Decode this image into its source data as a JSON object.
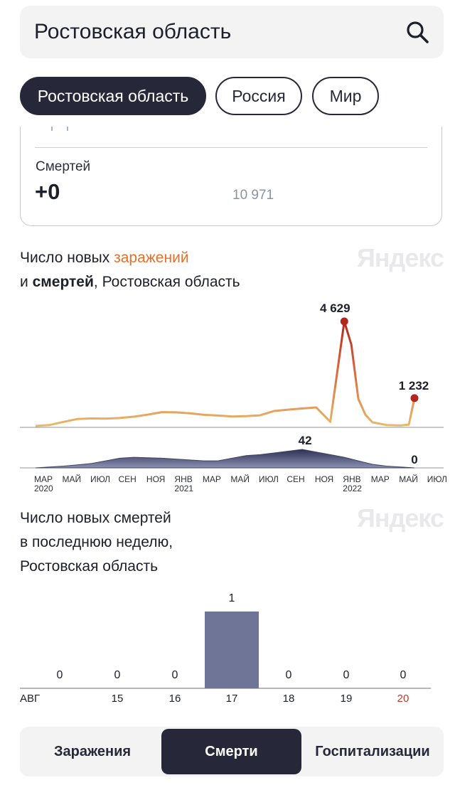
{
  "search": {
    "value": "Ростовская область"
  },
  "regions": [
    {
      "label": "Ростовская область",
      "active": true
    },
    {
      "label": "Россия",
      "active": false
    },
    {
      "label": "Мир",
      "active": false
    }
  ],
  "stats": {
    "deaths_label": "Смертей",
    "deaths_new": "+0",
    "deaths_total": "10 971"
  },
  "main_chart_title": {
    "line1_prefix": "Число новых ",
    "line1_highlight": "заражений",
    "line2_prefix": "и ",
    "line2_bold": "смертей",
    "line2_suffix": ", Ростовская область"
  },
  "weekly_chart_title": {
    "line1": "Число новых смертей",
    "line2": "в последнюю неделю,",
    "line3": "Ростовская область"
  },
  "watermark": "Яндекс",
  "colors": {
    "infections_line": "#e9b86a",
    "infections_peak": "#c0392b",
    "deaths_area": "#3f4466",
    "weekly_bar": "#6e7596",
    "highlight_date": "#c0392b",
    "dark": "#26283a"
  },
  "chart_data": [
    {
      "type": "line",
      "series_kind": "infections",
      "x_ticks": [
        {
          "label": "МАР",
          "year": "2020"
        },
        {
          "label": "МАЙ"
        },
        {
          "label": "ИЮЛ"
        },
        {
          "label": "СЕН"
        },
        {
          "label": "НОЯ"
        },
        {
          "label": "ЯНВ",
          "year": "2021"
        },
        {
          "label": "МАР"
        },
        {
          "label": "МАЙ"
        },
        {
          "label": "ИЮЛ"
        },
        {
          "label": "СЕН"
        },
        {
          "label": "НОЯ"
        },
        {
          "label": "ЯНВ",
          "year": "2022"
        },
        {
          "label": "МАР"
        },
        {
          "label": "МАЙ"
        },
        {
          "label": "ИЮЛ"
        }
      ],
      "x_months": [
        0,
        24
      ],
      "points": [
        [
          0,
          0
        ],
        [
          1,
          40
        ],
        [
          2,
          180
        ],
        [
          3,
          310
        ],
        [
          4,
          330
        ],
        [
          5,
          320
        ],
        [
          6,
          350
        ],
        [
          7,
          410
        ],
        [
          8,
          500
        ],
        [
          9,
          610
        ],
        [
          10,
          600
        ],
        [
          11,
          560
        ],
        [
          12,
          490
        ],
        [
          13,
          460
        ],
        [
          14,
          420
        ],
        [
          15,
          430
        ],
        [
          16,
          470
        ],
        [
          17,
          660
        ],
        [
          18,
          720
        ],
        [
          19,
          770
        ],
        [
          20,
          820
        ],
        [
          21,
          180
        ],
        [
          22,
          4629
        ],
        [
          22.5,
          3600
        ],
        [
          23,
          1200
        ],
        [
          23.5,
          500
        ],
        [
          24,
          160
        ],
        [
          25,
          40
        ],
        [
          26,
          20
        ],
        [
          26.6,
          60
        ],
        [
          27,
          1232
        ]
      ],
      "peak_label": "4 629",
      "last_label": "1 232"
    },
    {
      "type": "area",
      "series_kind": "deaths",
      "points": [
        [
          0,
          0
        ],
        [
          1,
          2
        ],
        [
          2,
          4
        ],
        [
          3,
          7
        ],
        [
          4,
          10
        ],
        [
          5,
          16
        ],
        [
          6,
          22
        ],
        [
          7,
          24
        ],
        [
          8,
          23
        ],
        [
          9,
          22
        ],
        [
          10,
          20
        ],
        [
          11,
          18
        ],
        [
          12,
          16
        ],
        [
          13,
          16
        ],
        [
          14,
          22
        ],
        [
          15,
          28
        ],
        [
          16,
          30
        ],
        [
          17,
          34
        ],
        [
          18,
          38
        ],
        [
          19,
          42
        ],
        [
          20,
          36
        ],
        [
          21,
          30
        ],
        [
          22,
          24
        ],
        [
          23,
          16
        ],
        [
          24,
          8
        ],
        [
          25,
          4
        ],
        [
          26,
          2
        ],
        [
          27,
          0
        ]
      ],
      "peak_label": "42",
      "last_label": "0"
    },
    {
      "type": "bar",
      "categories": [
        "АВГ",
        "15",
        "16",
        "17",
        "18",
        "19",
        "20"
      ],
      "values": [
        0,
        0,
        0,
        1,
        0,
        0,
        0
      ],
      "highlight_category": "20"
    }
  ],
  "tabs": [
    {
      "label": "Заражения",
      "active": false
    },
    {
      "label": "Смерти",
      "active": true
    },
    {
      "label": "Госпитализации",
      "active": false
    }
  ]
}
